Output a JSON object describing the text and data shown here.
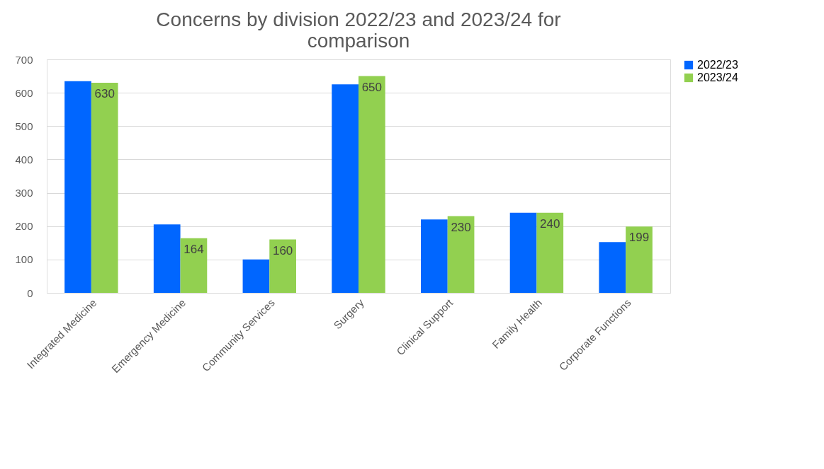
{
  "chart_data": {
    "type": "bar",
    "title": "Concerns by division 2022/23 and 2023/24 for comparison",
    "categories": [
      "Integrated Medicine",
      "Emergency Medicine",
      "Community Services",
      "Surgery",
      "Clinical Support",
      "Family Health",
      "Corporate Functions"
    ],
    "series": [
      {
        "name": "2022/23",
        "color": "#0066ff",
        "values": [
          635,
          205,
          100,
          625,
          220,
          240,
          152
        ]
      },
      {
        "name": "2023/24",
        "color": "#92d050",
        "values": [
          630,
          164,
          160,
          650,
          230,
          240,
          199
        ],
        "value_labels": [
          "630",
          "164",
          "160",
          "650",
          "230",
          "240",
          "199"
        ]
      }
    ],
    "ylim": [
      0,
      700
    ],
    "yticks": [
      0,
      100,
      200,
      300,
      400,
      500,
      600,
      700
    ],
    "grid": "y",
    "legend": "right"
  }
}
